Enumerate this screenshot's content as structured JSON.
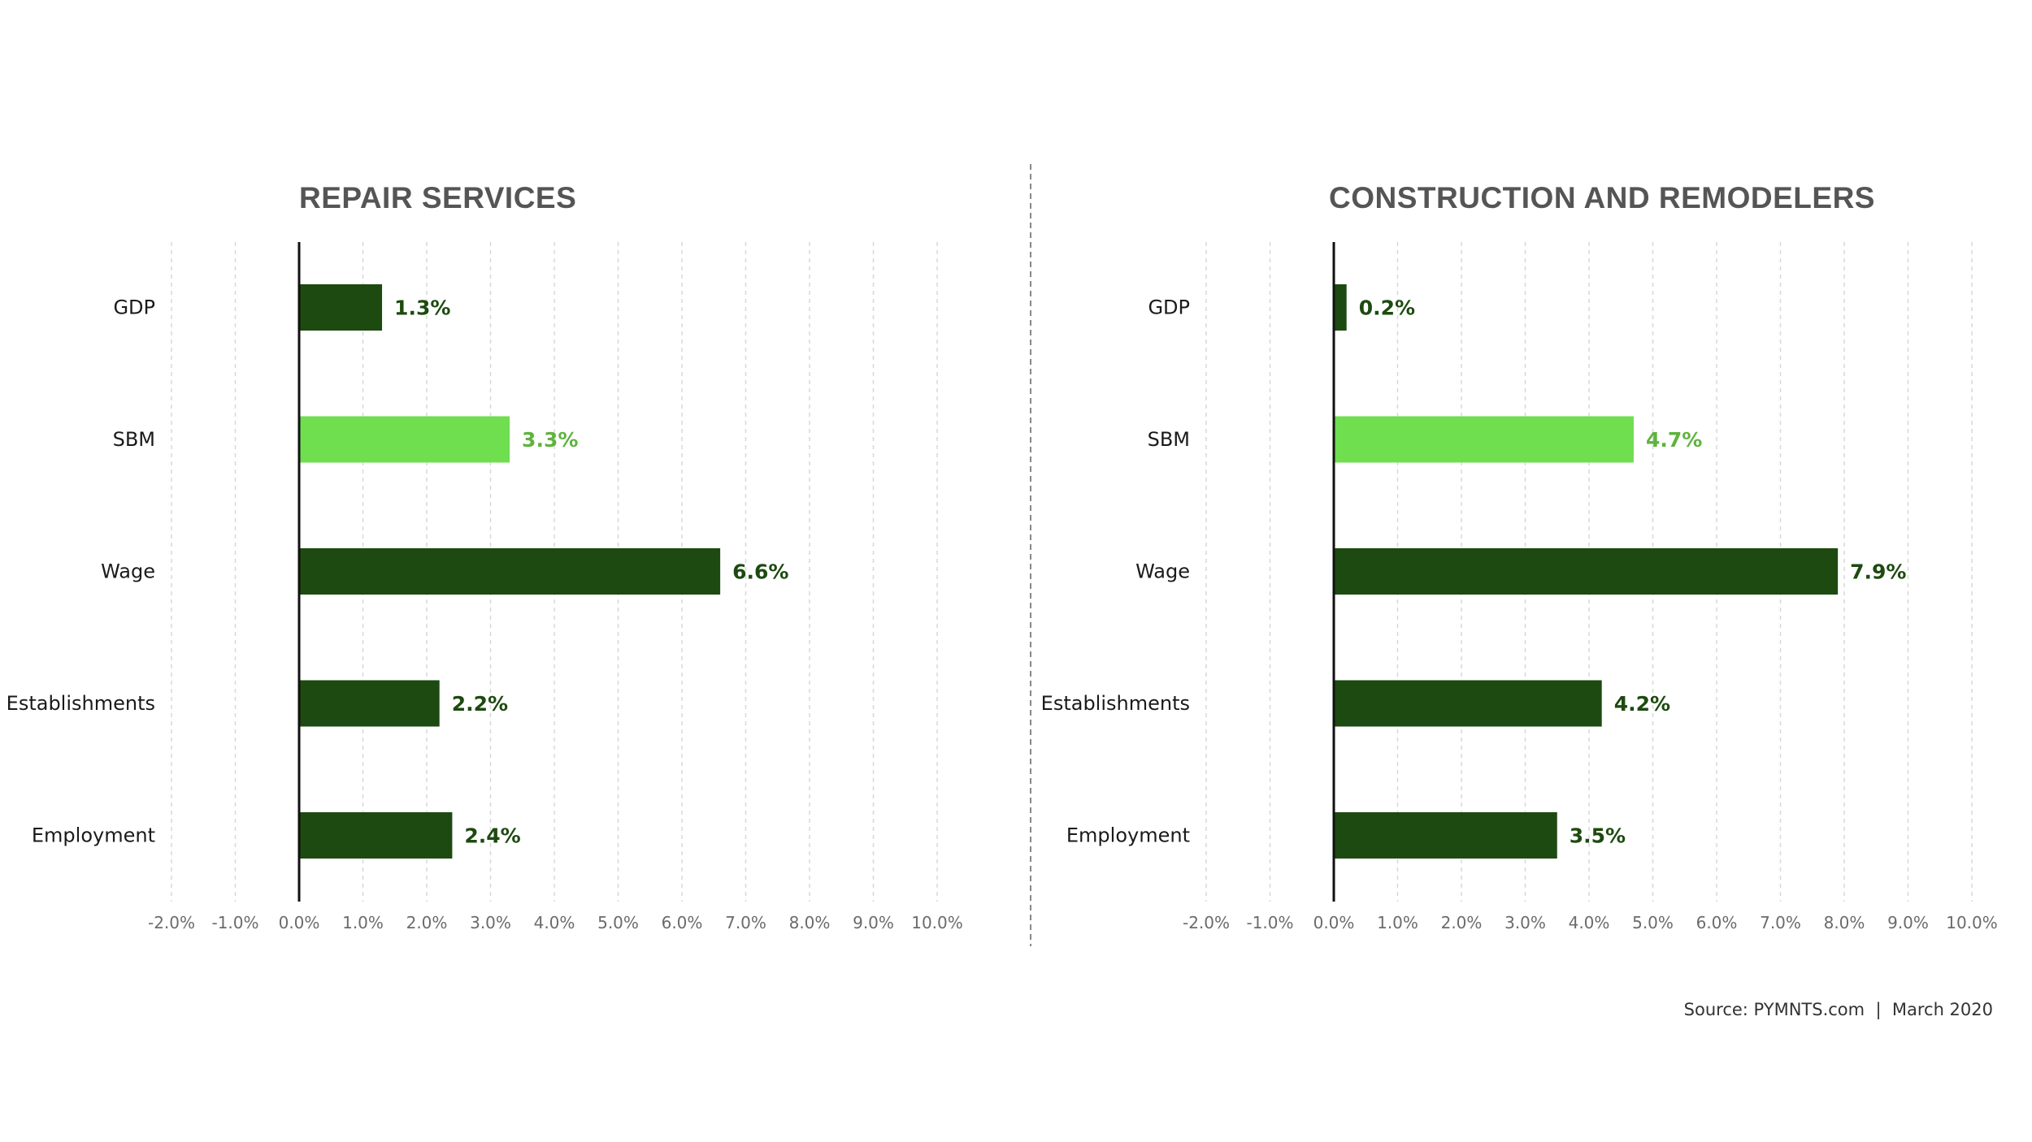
{
  "chart_data": [
    {
      "type": "bar",
      "orientation": "horizontal",
      "title": "REPAIR SERVICES",
      "categories": [
        "GDP",
        "SBM",
        "Wage",
        "Establishments",
        "Employment"
      ],
      "values": [
        1.3,
        3.3,
        6.6,
        2.2,
        2.4
      ],
      "value_labels": [
        "1.3%",
        "3.3%",
        "6.6%",
        "2.2%",
        "2.4%"
      ],
      "highlight": "SBM",
      "xlim": [
        -2.0,
        10.0
      ],
      "xticks": [
        -2,
        -1,
        0,
        1,
        2,
        3,
        4,
        5,
        6,
        7,
        8,
        9,
        10
      ],
      "xtick_labels": [
        "-2.0%",
        "-1.0%",
        "0.0%",
        "1.0%",
        "2.0%",
        "3.0%",
        "4.0%",
        "5.0%",
        "6.0%",
        "7.0%",
        "8.0%",
        "9.0%",
        "10.0%"
      ],
      "grid": true,
      "xlabel": "",
      "ylabel": ""
    },
    {
      "type": "bar",
      "orientation": "horizontal",
      "title": "CONSTRUCTION AND REMODELERS",
      "categories": [
        "GDP",
        "SBM",
        "Wage",
        "Establishments",
        "Employment"
      ],
      "values": [
        0.2,
        4.7,
        7.9,
        4.2,
        3.5
      ],
      "value_labels": [
        "0.2%",
        "4.7%",
        "7.9%",
        "4.2%",
        "3.5%"
      ],
      "highlight": "SBM",
      "xlim": [
        -2.0,
        10.0
      ],
      "xticks": [
        -2,
        -1,
        0,
        1,
        2,
        3,
        4,
        5,
        6,
        7,
        8,
        9,
        10
      ],
      "xtick_labels": [
        "-2.0%",
        "-1.0%",
        "0.0%",
        "1.0%",
        "2.0%",
        "3.0%",
        "4.0%",
        "5.0%",
        "6.0%",
        "7.0%",
        "8.0%",
        "9.0%",
        "10.0%"
      ],
      "grid": true,
      "xlabel": "",
      "ylabel": ""
    }
  ],
  "colors": {
    "bar_default": "#1d4a10",
    "bar_highlight": "#6fde4f",
    "label_default": "#1d4a10",
    "label_highlight": "#5fb33e"
  },
  "source": "Source: PYMNTS.com  |  March 2020"
}
